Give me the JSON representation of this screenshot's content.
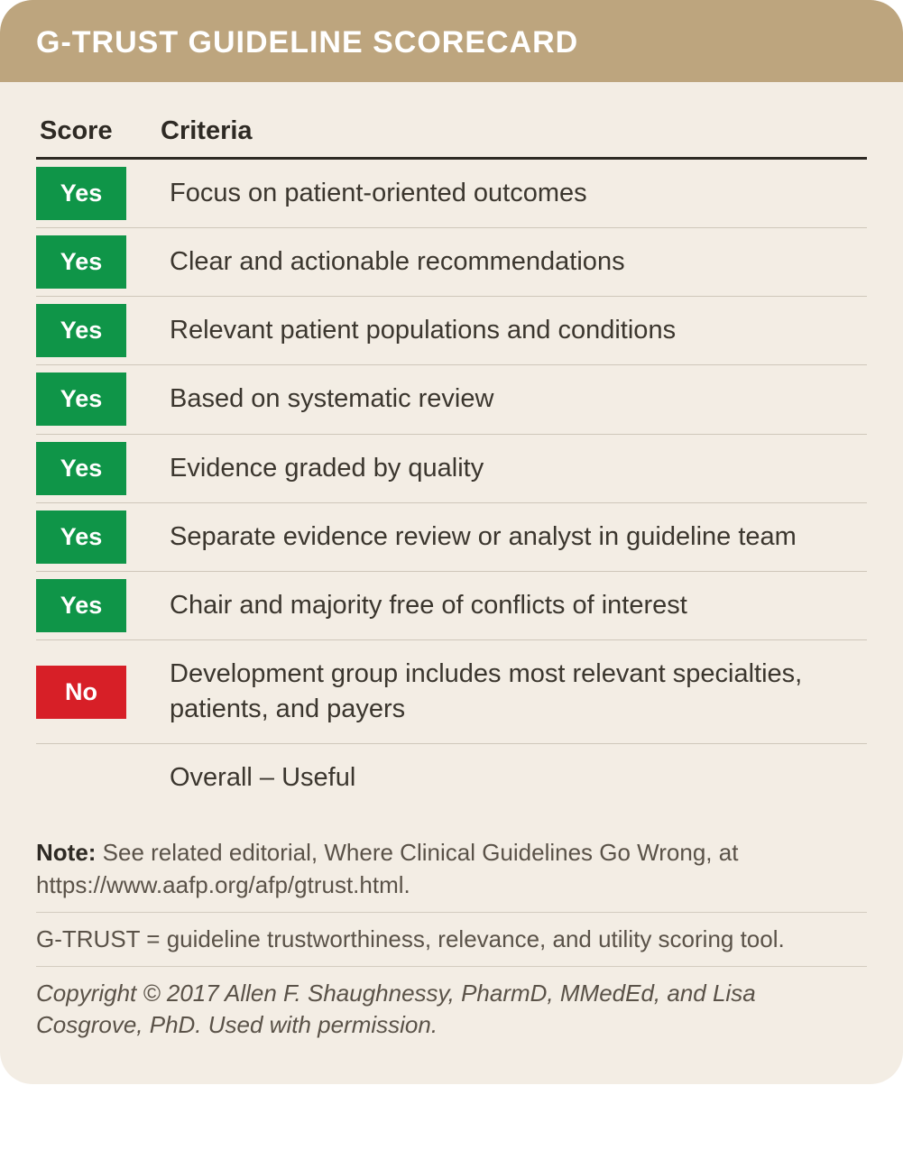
{
  "header": {
    "title": "G-TRUST GUIDELINE SCORECARD"
  },
  "colors": {
    "header_bg": "#bda57e",
    "header_text": "#ffffff",
    "card_bg": "#f3ede4",
    "yes_bg": "#0f9548",
    "no_bg": "#d71f27",
    "badge_text": "#ffffff",
    "rule": "#2e2a24",
    "row_divider": "#cfc7ba",
    "body_text": "#3b362e",
    "note_text": "#5a5248"
  },
  "table": {
    "columns": {
      "score": "Score",
      "criteria": "Criteria"
    },
    "rows": [
      {
        "score": "Yes",
        "score_kind": "yes",
        "criteria": "Focus on patient-oriented outcomes"
      },
      {
        "score": "Yes",
        "score_kind": "yes",
        "criteria": "Clear and actionable recommendations"
      },
      {
        "score": "Yes",
        "score_kind": "yes",
        "criteria": "Relevant patient populations and conditions"
      },
      {
        "score": "Yes",
        "score_kind": "yes",
        "criteria": "Based on systematic review"
      },
      {
        "score": "Yes",
        "score_kind": "yes",
        "criteria": "Evidence graded by quality"
      },
      {
        "score": "Yes",
        "score_kind": "yes",
        "criteria": "Separate evidence review or analyst in guideline team"
      },
      {
        "score": "Yes",
        "score_kind": "yes",
        "criteria": "Chair and majority free of conflicts of interest"
      },
      {
        "score": "No",
        "score_kind": "no",
        "criteria": "Development group includes most relevant specialties, patients, and payers"
      },
      {
        "score": "",
        "score_kind": "",
        "criteria": "Overall – Useful"
      }
    ]
  },
  "notes": {
    "note_label": "Note:",
    "note_text": " See related editorial, Where Clinical Guidelines Go Wrong, at https://www.aafp.org/afp/gtrust.html.",
    "definition": "G-TRUST = guideline trustworthiness, relevance, and utility scoring tool.",
    "copyright": "Copyright © 2017 Allen F. Shaughnessy, PharmD, MMedEd, and Lisa Cosgrove, PhD. Used with permission."
  }
}
